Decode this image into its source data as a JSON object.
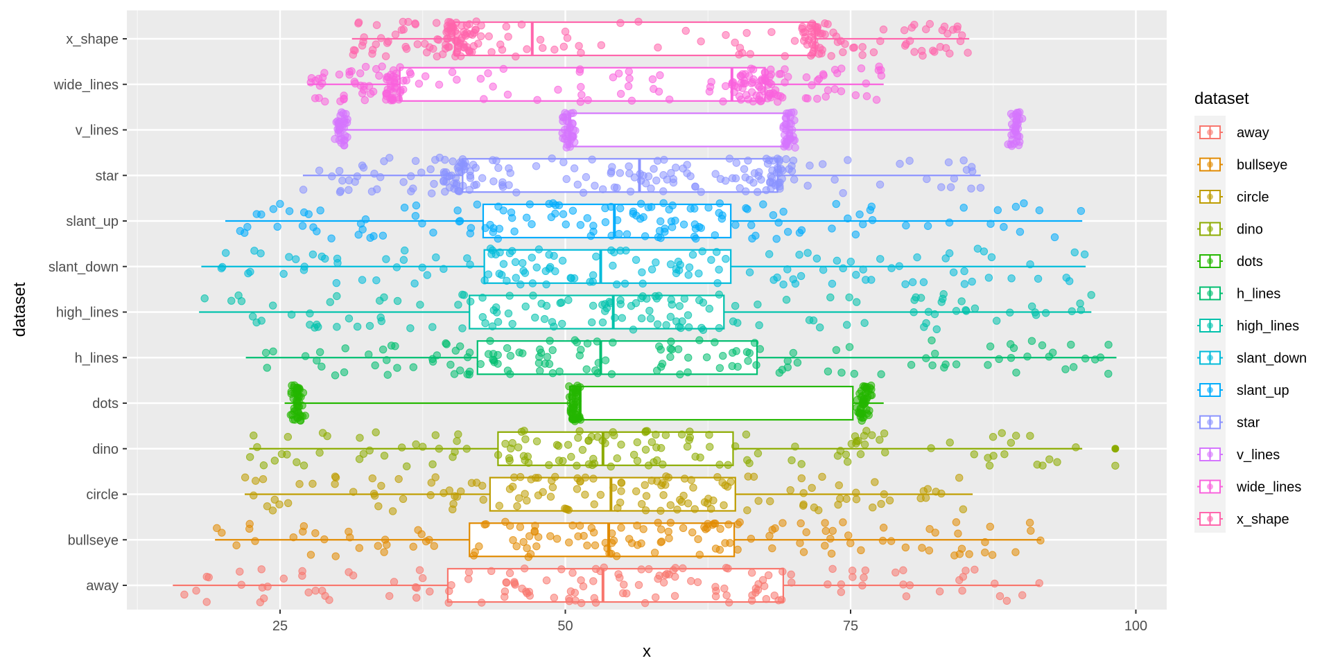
{
  "chart_data": {
    "type": "boxplot",
    "xlabel": "x",
    "ylabel": "dataset",
    "xlim": [
      12,
      104
    ],
    "x_ticks": [
      25,
      50,
      75,
      100
    ],
    "grid": true,
    "jitter_points": true,
    "legend": {
      "title": "dataset",
      "position": "right"
    },
    "series": [
      {
        "name": "away",
        "color": "#F8766D",
        "whisker_low": 15.6,
        "q1": 39.7,
        "median": 53.3,
        "q3": 69.1,
        "whisker_high": 91.6,
        "distribution": "spread"
      },
      {
        "name": "bullseye",
        "color": "#E18A00",
        "whisker_low": 19.3,
        "q1": 41.6,
        "median": 53.8,
        "q3": 64.8,
        "whisker_high": 91.7,
        "distribution": "spread"
      },
      {
        "name": "circle",
        "color": "#BE9C00",
        "whisker_low": 21.9,
        "q1": 43.4,
        "median": 54.0,
        "q3": 64.9,
        "whisker_high": 85.7,
        "distribution": "spread"
      },
      {
        "name": "dino",
        "color": "#8CAB00",
        "whisker_low": 22.3,
        "q1": 44.1,
        "median": 53.3,
        "q3": 64.7,
        "whisker_high": 95.3,
        "outliers": [
          98.2
        ],
        "distribution": "spread"
      },
      {
        "name": "dots",
        "color": "#24B700",
        "whisker_low": 25.4,
        "q1": 50.4,
        "median": 51.3,
        "q3": 75.2,
        "whisker_high": 77.9,
        "distribution": "clusters",
        "clusters": [
          26.5,
          50.8,
          76.2
        ]
      },
      {
        "name": "h_lines",
        "color": "#00BE70",
        "whisker_low": 22.0,
        "q1": 42.3,
        "median": 53.1,
        "q3": 66.8,
        "whisker_high": 98.3,
        "distribution": "spread"
      },
      {
        "name": "high_lines",
        "color": "#00C1AB",
        "whisker_low": 17.9,
        "q1": 41.6,
        "median": 54.2,
        "q3": 63.9,
        "whisker_high": 96.1,
        "distribution": "spread"
      },
      {
        "name": "slant_down",
        "color": "#00BBDA",
        "whisker_low": 18.1,
        "q1": 42.9,
        "median": 53.1,
        "q3": 64.5,
        "whisker_high": 95.6,
        "distribution": "spread"
      },
      {
        "name": "slant_up",
        "color": "#00ACFC",
        "whisker_low": 20.2,
        "q1": 42.8,
        "median": 54.3,
        "q3": 64.5,
        "whisker_high": 95.3,
        "distribution": "spread"
      },
      {
        "name": "star",
        "color": "#8B93FF",
        "whisker_low": 27.0,
        "q1": 41.0,
        "median": 56.5,
        "q3": 68.6,
        "whisker_high": 86.4,
        "distribution": "star"
      },
      {
        "name": "v_lines",
        "color": "#D575FE",
        "whisker_low": 30.4,
        "q1": 50.3,
        "median": 50.4,
        "q3": 69.5,
        "whisker_high": 89.5,
        "distribution": "clusters",
        "clusters": [
          30.4,
          50.3,
          69.5,
          89.5
        ]
      },
      {
        "name": "wide_lines",
        "color": "#F962DD",
        "whisker_low": 27.4,
        "q1": 35.5,
        "median": 64.6,
        "q3": 67.5,
        "whisker_high": 77.9,
        "distribution": "wide"
      },
      {
        "name": "x_shape",
        "color": "#FF65AC",
        "whisker_low": 31.3,
        "q1": 40.3,
        "median": 47.1,
        "q3": 71.9,
        "whisker_high": 85.4,
        "distribution": "xshape"
      }
    ]
  }
}
